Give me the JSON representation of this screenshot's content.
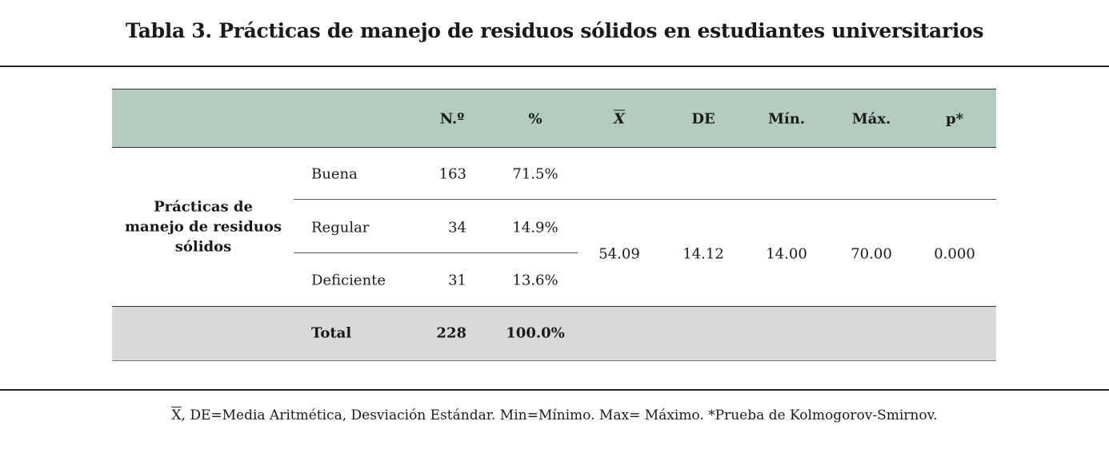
{
  "title": "Tabla 3. Prácticas de manejo de residuos sólidos en estudiantes universitarios",
  "headers": {
    "n": "N.º",
    "pct": "%",
    "mean": "X",
    "sd": "DE",
    "min": "Mín.",
    "max": "Máx.",
    "p": "p*"
  },
  "category": "Prácticas de manejo de residuos sólidos",
  "rows": [
    {
      "label": "Buena",
      "n": "163",
      "pct": "71.5%"
    },
    {
      "label": "Regular",
      "n": "34",
      "pct": "14.9%"
    },
    {
      "label": "Deficiente",
      "n": "31",
      "pct": "13.6%"
    }
  ],
  "stats": {
    "mean": "54.09",
    "sd": "14.12",
    "min": "14.00",
    "max": "70.00",
    "p": "0.000"
  },
  "total": {
    "label": "Total",
    "n": "228",
    "pct": "100.0%"
  },
  "footnote": {
    "symbol": "X",
    "text": ", DE=Media Aritmética, Desviación Estándar. Min=Mínimo. Max= Máximo. *Prueba de Kolmogorov-Smirnov."
  }
}
